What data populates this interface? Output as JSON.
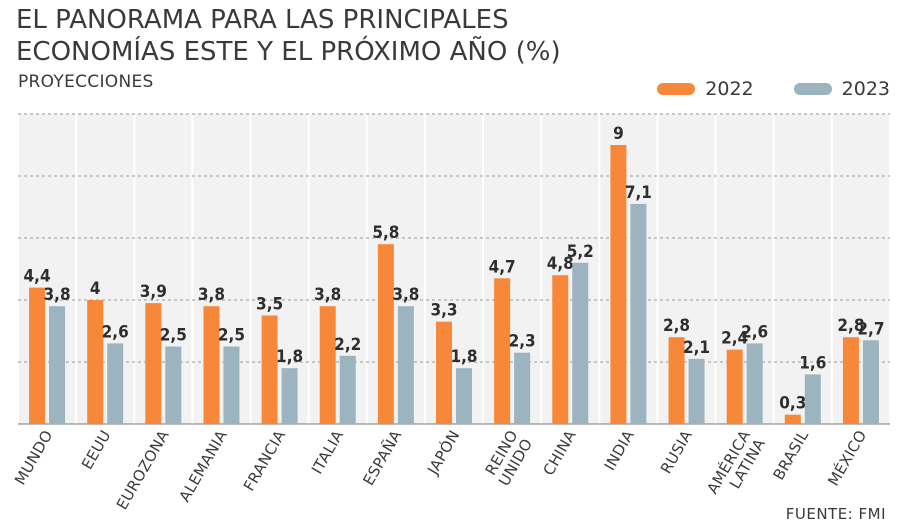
{
  "title_line1": "EL PANORAMA PARA LAS PRINCIPALES",
  "title_line2": "ECONOMÍAS ESTE Y EL PRÓXIMO AÑO (%)",
  "subtitle": "PROYECCIONES",
  "source": "FUENTE: FMI",
  "colors": {
    "2022": "#f7883a",
    "2023": "#9bb4bf",
    "grid": "#9a9a9a",
    "panel": "#f2f2f2"
  },
  "chart_data": {
    "type": "bar",
    "categories": [
      [
        "MUNDO"
      ],
      [
        "EEUU"
      ],
      [
        "EUROZONA"
      ],
      [
        "ALEMANIA"
      ],
      [
        "FRANCIA"
      ],
      [
        "ITALIA"
      ],
      [
        "ESPAÑA"
      ],
      [
        "JAPÓN"
      ],
      [
        "REINO",
        "UNIDO"
      ],
      [
        "CHINA"
      ],
      [
        "INDIA"
      ],
      [
        "RUSIA"
      ],
      [
        "AMÉRICA",
        "LATINA"
      ],
      [
        "BRASIL"
      ],
      [
        "MÉXICO"
      ]
    ],
    "series": [
      {
        "name": "2022",
        "values": [
          4.4,
          4,
          3.9,
          3.8,
          3.5,
          3.8,
          5.8,
          3.3,
          4.7,
          4.8,
          9,
          2.8,
          2.4,
          0.3,
          2.8
        ],
        "labels": [
          "4,4",
          "4",
          "3,9",
          "3,8",
          "3,5",
          "3,8",
          "5,8",
          "3,3",
          "4,7",
          "4,8",
          "9",
          "2,8",
          "2,4",
          "0,3",
          "2,8"
        ]
      },
      {
        "name": "2023",
        "values": [
          3.8,
          2.6,
          2.5,
          2.5,
          1.8,
          2.2,
          3.8,
          1.8,
          2.3,
          5.2,
          7.1,
          2.1,
          2.6,
          1.6,
          2.7
        ],
        "labels": [
          "3,8",
          "2,6",
          "2,5",
          "2,5",
          "1,8",
          "2,2",
          "3,8",
          "1,8",
          "2,3",
          "5,2",
          "7,1",
          "2,1",
          "2,6",
          "1,6",
          "2,7"
        ]
      }
    ],
    "ylim": [
      0,
      10
    ],
    "grid": true,
    "legend_position": "top-right"
  }
}
